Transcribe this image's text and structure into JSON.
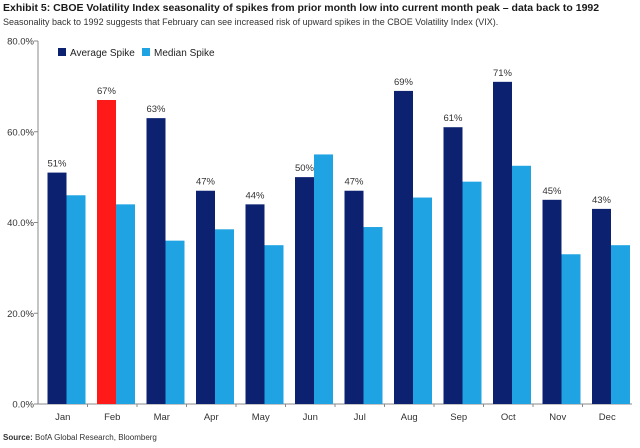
{
  "title": "Exhibit 5: CBOE Volatility Index seasonality of spikes from prior month low into current month peak – data back to 1992",
  "subtitle": "Seasonality back to 1992 suggests that February can see increased risk of upward spikes in the CBOE Volatility Index (VIX).",
  "source": {
    "label": "Source:",
    "text": "BofA Global Research, Bloomberg"
  },
  "colors": {
    "average": "#0c2271",
    "median": "#1fa3e2",
    "highlight": "#ff1a1a",
    "axis": "#888888"
  },
  "chart_data": {
    "type": "bar",
    "title": "CBOE Volatility Index seasonality of spikes from prior month low into current month peak",
    "xlabel": "",
    "ylabel": "",
    "ylim": [
      0,
      80
    ],
    "yticks": [
      0,
      20,
      40,
      60,
      80
    ],
    "ytick_labels": [
      "0.0%",
      "20.0%",
      "40.0%",
      "60.0%",
      "80.0%"
    ],
    "legend_position": "top-left",
    "categories": [
      "Jan",
      "Feb",
      "Mar",
      "Apr",
      "May",
      "Jun",
      "Jul",
      "Aug",
      "Sep",
      "Oct",
      "Nov",
      "Dec"
    ],
    "series": [
      {
        "name": "Average Spike",
        "values": [
          51,
          67,
          63,
          47,
          44,
          50,
          47,
          69,
          61,
          71,
          45,
          43
        ],
        "labels": [
          "51%",
          "67%",
          "63%",
          "47%",
          "44%",
          "50%",
          "47%",
          "69%",
          "61%",
          "71%",
          "45%",
          "43%"
        ],
        "highlight_index": 1
      },
      {
        "name": "Median Spike",
        "values": [
          46,
          44,
          36,
          38.5,
          35,
          55,
          39,
          45.5,
          49,
          52.5,
          33,
          35
        ]
      }
    ]
  }
}
